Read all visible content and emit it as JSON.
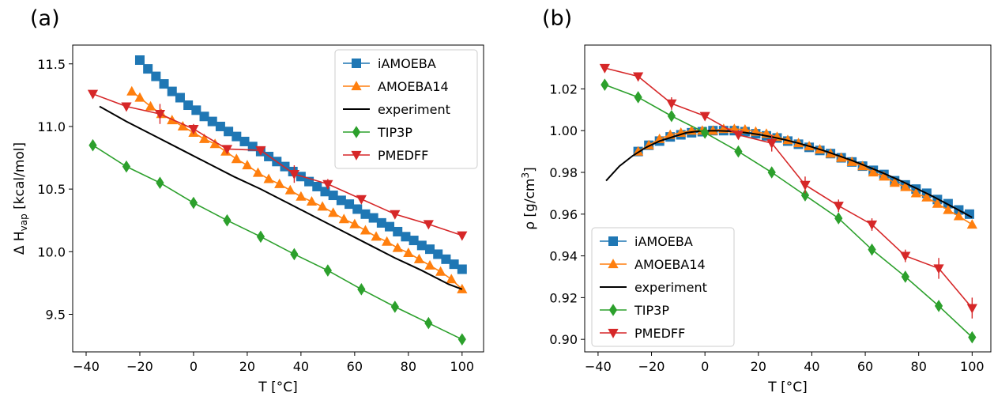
{
  "chart_data": [
    {
      "type": "line",
      "panel_label": "(a)",
      "xlabel": "T [°C]",
      "ylabel_main": "Δ H",
      "ylabel_sub": "vap",
      "ylabel_unit": " [kcal/mol]",
      "xlim": [
        -45,
        108
      ],
      "ylim": [
        9.2,
        11.65
      ],
      "xticks": [
        -40,
        -20,
        0,
        20,
        40,
        60,
        80,
        100
      ],
      "yticks": [
        9.5,
        10.0,
        10.5,
        11.0,
        11.5
      ],
      "ytick_labels": [
        "9.5",
        "10.0",
        "10.5",
        "11.0",
        "11.5"
      ],
      "legend_position": "top-right",
      "series": [
        {
          "name": "iAMOEBA",
          "color": "#1f77b4",
          "marker": "square",
          "x": [
            -20,
            -17,
            -14,
            -11,
            -8,
            -5,
            -2,
            1,
            4,
            7,
            10,
            13,
            16,
            19,
            22,
            25,
            28,
            31,
            34,
            37,
            40,
            43,
            46,
            49,
            52,
            55,
            58,
            61,
            64,
            67,
            70,
            73,
            76,
            79,
            82,
            85,
            88,
            91,
            94,
            97,
            100
          ],
          "y": [
            11.53,
            11.46,
            11.4,
            11.34,
            11.28,
            11.23,
            11.17,
            11.13,
            11.08,
            11.04,
            11.0,
            10.96,
            10.92,
            10.88,
            10.84,
            10.8,
            10.76,
            10.72,
            10.68,
            10.64,
            10.6,
            10.56,
            10.52,
            10.48,
            10.45,
            10.41,
            10.38,
            10.34,
            10.3,
            10.27,
            10.23,
            10.2,
            10.16,
            10.12,
            10.09,
            10.05,
            10.02,
            9.98,
            9.94,
            9.9,
            9.86
          ]
        },
        {
          "name": "AMOEBA14",
          "color": "#ff7f0e",
          "marker": "triangle-up",
          "x": [
            -23,
            -20,
            -16,
            -12,
            -8,
            -4,
            0,
            4,
            8,
            12,
            16,
            20,
            24,
            28,
            32,
            36,
            40,
            44,
            48,
            52,
            56,
            60,
            64,
            68,
            72,
            76,
            80,
            84,
            88,
            92,
            96,
            100
          ],
          "y": [
            11.28,
            11.23,
            11.16,
            11.1,
            11.05,
            11.0,
            10.95,
            10.9,
            10.86,
            10.8,
            10.74,
            10.69,
            10.63,
            10.58,
            10.54,
            10.49,
            10.44,
            10.4,
            10.36,
            10.31,
            10.26,
            10.22,
            10.17,
            10.12,
            10.08,
            10.03,
            9.99,
            9.94,
            9.89,
            9.84,
            9.78,
            9.7
          ]
        },
        {
          "name": "experiment",
          "color": "#000000",
          "marker": "none",
          "x": [
            -35,
            -25,
            -15,
            -5,
            5,
            15,
            25,
            35,
            45,
            55,
            65,
            75,
            85,
            95,
            100
          ],
          "y": [
            11.16,
            11.04,
            10.93,
            10.82,
            10.71,
            10.6,
            10.5,
            10.39,
            10.28,
            10.17,
            10.06,
            9.95,
            9.85,
            9.74,
            9.7
          ]
        },
        {
          "name": "TIP3P",
          "color": "#2ca02c",
          "marker": "diamond",
          "x": [
            -37.5,
            -25,
            -12.5,
            0,
            12.5,
            25,
            37.5,
            50,
            62.5,
            75,
            87.5,
            100
          ],
          "y": [
            10.85,
            10.68,
            10.55,
            10.39,
            10.25,
            10.12,
            9.98,
            9.85,
            9.7,
            9.56,
            9.43,
            9.3
          ]
        },
        {
          "name": "PMEDFF",
          "color": "#d62728",
          "marker": "triangle-down",
          "x": [
            -37.5,
            -25,
            -12.5,
            0,
            12.5,
            25,
            37.5,
            50,
            62.5,
            75,
            87.5,
            100
          ],
          "y": [
            11.26,
            11.16,
            11.1,
            10.98,
            10.82,
            10.81,
            10.62,
            10.54,
            10.42,
            10.3,
            10.22,
            10.13
          ],
          "yerr": [
            0.03,
            0.03,
            0.08,
            0.04,
            0.03,
            0.03,
            0.07,
            0.04,
            0.03,
            0.02,
            0.02,
            0.02
          ]
        }
      ]
    },
    {
      "type": "line",
      "panel_label": "(b)",
      "xlabel": "T [°C]",
      "ylabel_main": "ρ [g/cm",
      "ylabel_sup": "3",
      "ylabel_unit": "]",
      "xlim": [
        -45,
        107
      ],
      "ylim": [
        0.894,
        1.041
      ],
      "xticks": [
        -40,
        -20,
        0,
        20,
        40,
        60,
        80,
        100
      ],
      "yticks": [
        0.9,
        0.92,
        0.94,
        0.96,
        0.98,
        1.0,
        1.02
      ],
      "ytick_labels": [
        "0.90",
        "0.92",
        "0.94",
        "0.96",
        "0.98",
        "1.00",
        "1.02"
      ],
      "legend_position": "bottom-left",
      "series": [
        {
          "name": "iAMOEBA",
          "color": "#1f77b4",
          "marker": "square",
          "x": [
            -25,
            -21,
            -17,
            -13,
            -9,
            -5,
            -1,
            3,
            7,
            11,
            15,
            19,
            23,
            27,
            31,
            35,
            39,
            43,
            47,
            51,
            55,
            59,
            63,
            67,
            71,
            75,
            79,
            83,
            87,
            91,
            95,
            99
          ],
          "y": [
            0.99,
            0.993,
            0.995,
            0.997,
            0.998,
            0.999,
            0.9995,
            1.0,
            1.0,
            1.0,
            0.9995,
            0.9985,
            0.9975,
            0.9965,
            0.995,
            0.9935,
            0.992,
            0.9905,
            0.989,
            0.987,
            0.985,
            0.983,
            0.981,
            0.979,
            0.976,
            0.974,
            0.972,
            0.97,
            0.967,
            0.965,
            0.962,
            0.96
          ]
        },
        {
          "name": "AMOEBA14",
          "color": "#ff7f0e",
          "marker": "triangle-up",
          "x": [
            -25,
            -21,
            -17,
            -13,
            -9,
            -5,
            -1,
            3,
            7,
            11,
            15,
            19,
            23,
            27,
            31,
            35,
            39,
            43,
            47,
            51,
            55,
            59,
            63,
            67,
            71,
            75,
            79,
            83,
            87,
            91,
            95,
            100
          ],
          "y": [
            0.99,
            0.993,
            0.996,
            0.998,
            0.999,
            1.0,
            1.0,
            1.0,
            1.0008,
            1.0008,
            1.0005,
            0.9995,
            0.9985,
            0.997,
            0.9955,
            0.994,
            0.9925,
            0.991,
            0.989,
            0.987,
            0.985,
            0.983,
            0.98,
            0.978,
            0.975,
            0.973,
            0.97,
            0.968,
            0.965,
            0.962,
            0.959,
            0.955
          ]
        },
        {
          "name": "experiment",
          "color": "#000000",
          "marker": "none",
          "x": [
            -37,
            -32,
            -27,
            -22,
            -17,
            -12,
            -7,
            -2,
            4,
            10,
            15,
            20,
            25,
            30,
            35,
            40,
            45,
            50,
            55,
            60,
            65,
            70,
            75,
            80,
            85,
            90,
            95,
            100
          ],
          "y": [
            0.976,
            0.983,
            0.988,
            0.992,
            0.995,
            0.997,
            0.999,
            0.9998,
            1.0,
            0.9997,
            0.9991,
            0.9982,
            0.997,
            0.9956,
            0.994,
            0.9922,
            0.9902,
            0.988,
            0.9857,
            0.9832,
            0.9806,
            0.9778,
            0.9749,
            0.9718,
            0.9687,
            0.9653,
            0.9619,
            0.9584
          ]
        },
        {
          "name": "TIP3P",
          "color": "#2ca02c",
          "marker": "diamond",
          "x": [
            -37.5,
            -25,
            -12.5,
            0,
            12.5,
            25,
            37.5,
            50,
            62.5,
            75,
            87.5,
            100
          ],
          "y": [
            1.022,
            1.016,
            1.007,
            0.999,
            0.99,
            0.98,
            0.969,
            0.958,
            0.943,
            0.93,
            0.916,
            0.901
          ]
        },
        {
          "name": "PMEDFF",
          "color": "#d62728",
          "marker": "triangle-down",
          "x": [
            -37.5,
            -25,
            -12.5,
            0,
            12.5,
            25,
            37.5,
            50,
            62.5,
            75,
            87.5,
            100
          ],
          "y": [
            1.03,
            1.026,
            1.013,
            1.007,
            0.998,
            0.994,
            0.974,
            0.964,
            0.955,
            0.94,
            0.934,
            0.915
          ],
          "yerr": [
            0.001,
            0.001,
            0.003,
            0.001,
            0.002,
            0.004,
            0.004,
            0.003,
            0.003,
            0.003,
            0.005,
            0.005
          ]
        }
      ]
    }
  ]
}
